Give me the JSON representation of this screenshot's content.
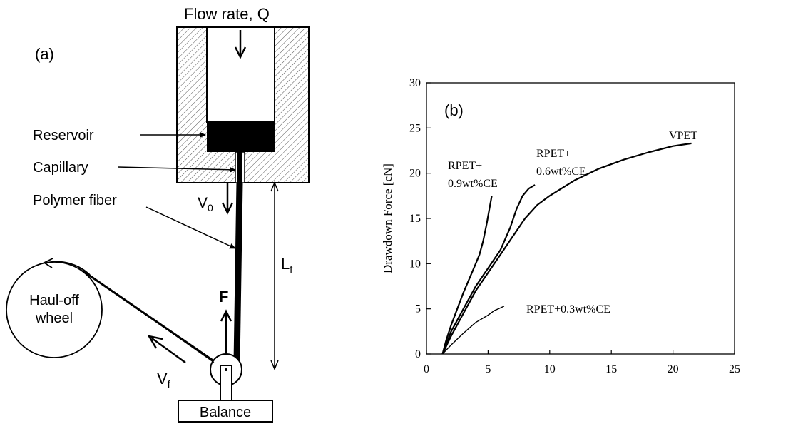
{
  "panel_a": {
    "label": "(a)",
    "flow_label": "Flow rate, Q",
    "reservoir_label": "Reservoir",
    "capillary_label": "Capillary",
    "fiber_label": "Polymer fiber",
    "v0_label": "V",
    "v0_sub": "0",
    "lf_label": "L",
    "lf_sub": "f",
    "f_label": "F",
    "wheel_label_1": "Haul-off",
    "wheel_label_2": "wheel",
    "vf_label": "V",
    "vf_sub": "f",
    "balance_label": "Balance"
  },
  "panel_b": {
    "label": "(b)"
  },
  "chart_data": {
    "type": "line",
    "title": "",
    "xlabel": "",
    "ylabel": "Drawdown Force [cN]",
    "xlim": [
      0,
      25
    ],
    "ylim": [
      0,
      30
    ],
    "x_ticks": [
      "0",
      "5",
      "10",
      "15",
      "20",
      "25"
    ],
    "y_ticks": [
      "0",
      "5",
      "10",
      "15",
      "20",
      "25",
      "30"
    ],
    "grid": false,
    "series": [
      {
        "name": "RPET+ 0.9wt%CE",
        "label_lines": [
          "RPET+",
          "0.9wt%CE"
        ],
        "x": [
          1.3,
          1.6,
          2.0,
          2.5,
          3.0,
          3.5,
          4.0,
          4.3,
          4.6,
          4.9,
          5.1,
          5.3
        ],
        "y": [
          0,
          1.5,
          3.2,
          5.0,
          6.8,
          8.4,
          10.0,
          11.0,
          12.5,
          14.5,
          16.0,
          17.5
        ]
      },
      {
        "name": "RPET+ 0.6wt%CE",
        "label_lines": [
          "RPET+",
          "0.6wt%CE"
        ],
        "x": [
          1.3,
          2.0,
          3.0,
          4.0,
          5.0,
          6.0,
          6.8,
          7.3,
          7.8,
          8.3,
          8.8
        ],
        "y": [
          0,
          2.5,
          5.0,
          7.5,
          9.5,
          11.5,
          14.0,
          16.0,
          17.5,
          18.3,
          18.7
        ]
      },
      {
        "name": "VPET",
        "label_lines": [
          "VPET"
        ],
        "x": [
          1.3,
          2.0,
          3.0,
          4.0,
          5.0,
          6.0,
          7.0,
          8.0,
          9.0,
          10.0,
          12.0,
          14.0,
          16.0,
          18.0,
          20.0,
          21.5
        ],
        "y": [
          0,
          2.0,
          4.5,
          7.0,
          9.0,
          11.0,
          13.0,
          15.0,
          16.5,
          17.5,
          19.2,
          20.5,
          21.5,
          22.3,
          23.0,
          23.3
        ]
      },
      {
        "name": "RPET+0.3wt%CE",
        "label_lines": [
          "RPET+0.3wt%CE"
        ],
        "x": [
          1.3,
          2.0,
          3.0,
          4.0,
          5.0,
          5.5,
          6.0,
          6.3
        ],
        "y": [
          0,
          1.0,
          2.3,
          3.5,
          4.3,
          4.8,
          5.1,
          5.3
        ]
      }
    ]
  }
}
